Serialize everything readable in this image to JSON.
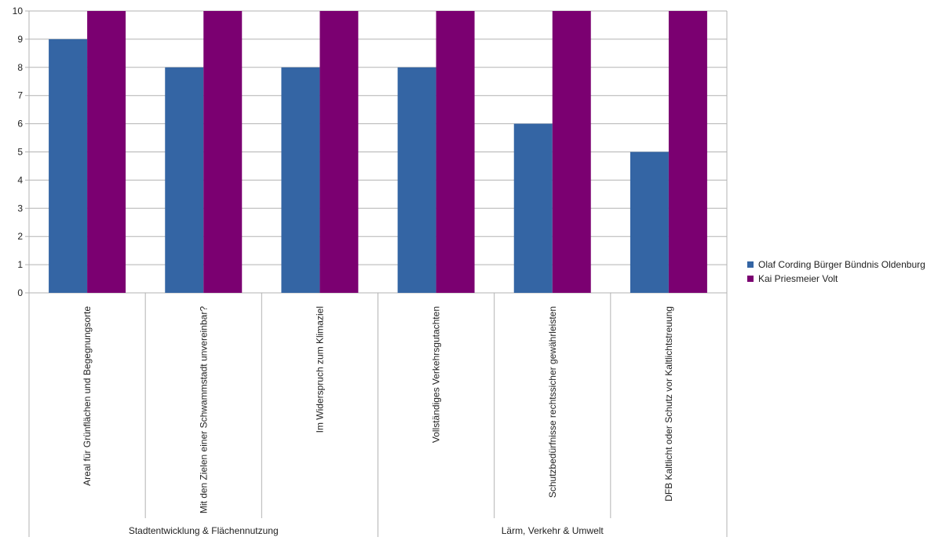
{
  "chart_data": {
    "type": "bar",
    "ylim": [
      0,
      10
    ],
    "yticks": [
      "0",
      "1",
      "2",
      "3",
      "4",
      "5",
      "6",
      "7",
      "8",
      "9",
      "10"
    ],
    "grid": true,
    "legend_position": "right",
    "categories": [
      "Areal für Grünflächen und Begegnungsorte",
      "Mit den Zielen einer Schwammstadt unvereinbar?",
      "Im Widerspruch zum Klimaziel",
      "Vollständiges Verkehrsgutachten",
      "Schutzbedürfnisse rechtssicher gewährleisten",
      "DFB Kaltlicht oder Schutz vor Kaltlichtstreuung"
    ],
    "groups": [
      {
        "label": "Stadtentwicklung & Flächennutzung",
        "span": [
          0,
          2
        ]
      },
      {
        "label": "Lärm, Verkehr & Umwelt",
        "span": [
          3,
          5
        ]
      }
    ],
    "series": [
      {
        "name": "Olaf Cording Bürger Bündnis Oldenburg",
        "color": "#3465a4",
        "values": [
          9,
          8,
          8,
          8,
          6,
          5
        ]
      },
      {
        "name": "Kai Priesmeier Volt",
        "color": "#7b0071",
        "values": [
          10,
          10,
          10,
          10,
          10,
          10
        ]
      }
    ]
  }
}
